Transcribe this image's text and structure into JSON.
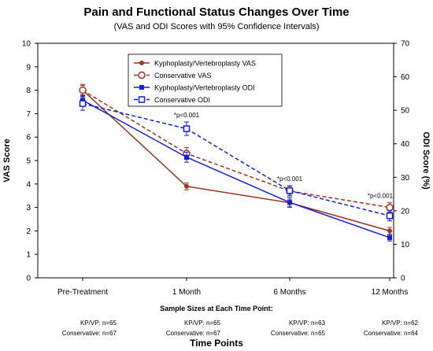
{
  "chart_data": {
    "type": "line",
    "title": "Pain and Functional Status Changes Over Time",
    "subtitle": "(VAS and ODI Scores with 95% Confidence Intervals)",
    "xlabel": "Time Points",
    "ylabel_left": "VAS Score",
    "ylabel_right": "ODI Score (%)",
    "categories": [
      "Pre-Treatment",
      "1 Month",
      "6 Months",
      "12 Months"
    ],
    "ylim_left": [
      0,
      10
    ],
    "ylim_right": [
      0,
      70
    ],
    "yticks_left": [
      "0",
      "1",
      "2",
      "3",
      "4",
      "5",
      "6",
      "7",
      "8",
      "9",
      "10"
    ],
    "yticks_right": [
      "0",
      "10",
      "20",
      "30",
      "40",
      "50",
      "60",
      "70"
    ],
    "grid": false,
    "legend_position": "top-center",
    "series": [
      {
        "name": "Kyphoplasty/Vertebroplasty VAS",
        "axis": "left",
        "color": "#a0341a",
        "marker": "circle-filled",
        "dash": "solid",
        "values": [
          8.0,
          3.9,
          3.2,
          2.0
        ],
        "ci_low": [
          7.8,
          3.75,
          3.05,
          1.85
        ],
        "ci_high": [
          8.2,
          4.05,
          3.35,
          2.15
        ]
      },
      {
        "name": "Conservative VAS",
        "axis": "left",
        "color": "#a0341a",
        "marker": "circle-open",
        "dash": "dashed",
        "values": [
          8.0,
          5.3,
          3.7,
          3.0
        ],
        "ci_low": [
          7.75,
          5.05,
          3.5,
          2.8
        ],
        "ci_high": [
          8.25,
          5.55,
          3.9,
          3.2
        ]
      },
      {
        "name": "Kyphoplasty/Vertebroplasty ODI",
        "axis": "right",
        "color": "#1020e0",
        "marker": "square-filled",
        "dash": "solid",
        "values": [
          53,
          36,
          22.5,
          12
        ],
        "ci_low": [
          51.5,
          34.5,
          21,
          11
        ],
        "ci_high": [
          54.5,
          37.5,
          24,
          13
        ]
      },
      {
        "name": "Conservative ODI",
        "axis": "right",
        "color": "#1020e0",
        "marker": "square-open",
        "dash": "dashed",
        "values": [
          52,
          44.5,
          26,
          18.5
        ],
        "ci_low": [
          50,
          42.5,
          24.5,
          17
        ],
        "ci_high": [
          54,
          46.5,
          27.5,
          20
        ]
      }
    ],
    "annotations": [
      {
        "text": "*p<0.001",
        "category": "1 Month"
      },
      {
        "text": "*p<0.001",
        "category": "6 Months"
      },
      {
        "text": "*p<0.001",
        "category": "12 Months"
      }
    ]
  },
  "sample_sizes": {
    "title": "Sample Sizes at Each Time Point:",
    "columns": [
      {
        "kp": "KP/VP: n=65",
        "cons": "Conservative: n=67"
      },
      {
        "kp": "KP/VP: n=65",
        "cons": "Conservative: n=67"
      },
      {
        "kp": "KP/VP: n=63",
        "cons": "Conservative: n=65"
      },
      {
        "kp": "KP/VP: n=62",
        "cons": "Conservative: n=64"
      }
    ]
  }
}
